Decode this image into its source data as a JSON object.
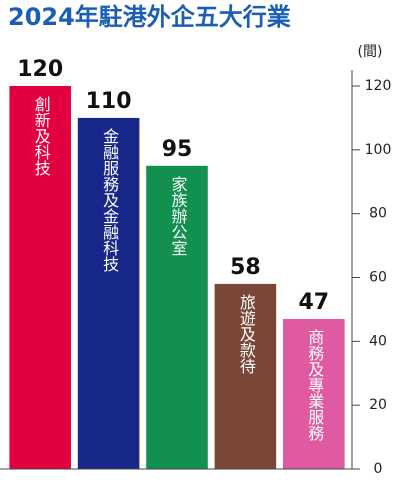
{
  "chart_data": {
    "type": "bar",
    "title": "2024年駐港外企五大行業",
    "unit_label": "(間)",
    "categories": [
      "創新及科技",
      "金融服務及金融科技",
      "家族辦公室",
      "旅遊及款待",
      "商務及專業服務"
    ],
    "values": [
      120,
      110,
      95,
      58,
      47
    ],
    "colors": [
      "#e2003f",
      "#18288a",
      "#12904f",
      "#7a4636",
      "#df5aa0"
    ],
    "ylim": [
      0,
      120
    ],
    "yticks": [
      0,
      20,
      40,
      60,
      80,
      100,
      120
    ]
  }
}
